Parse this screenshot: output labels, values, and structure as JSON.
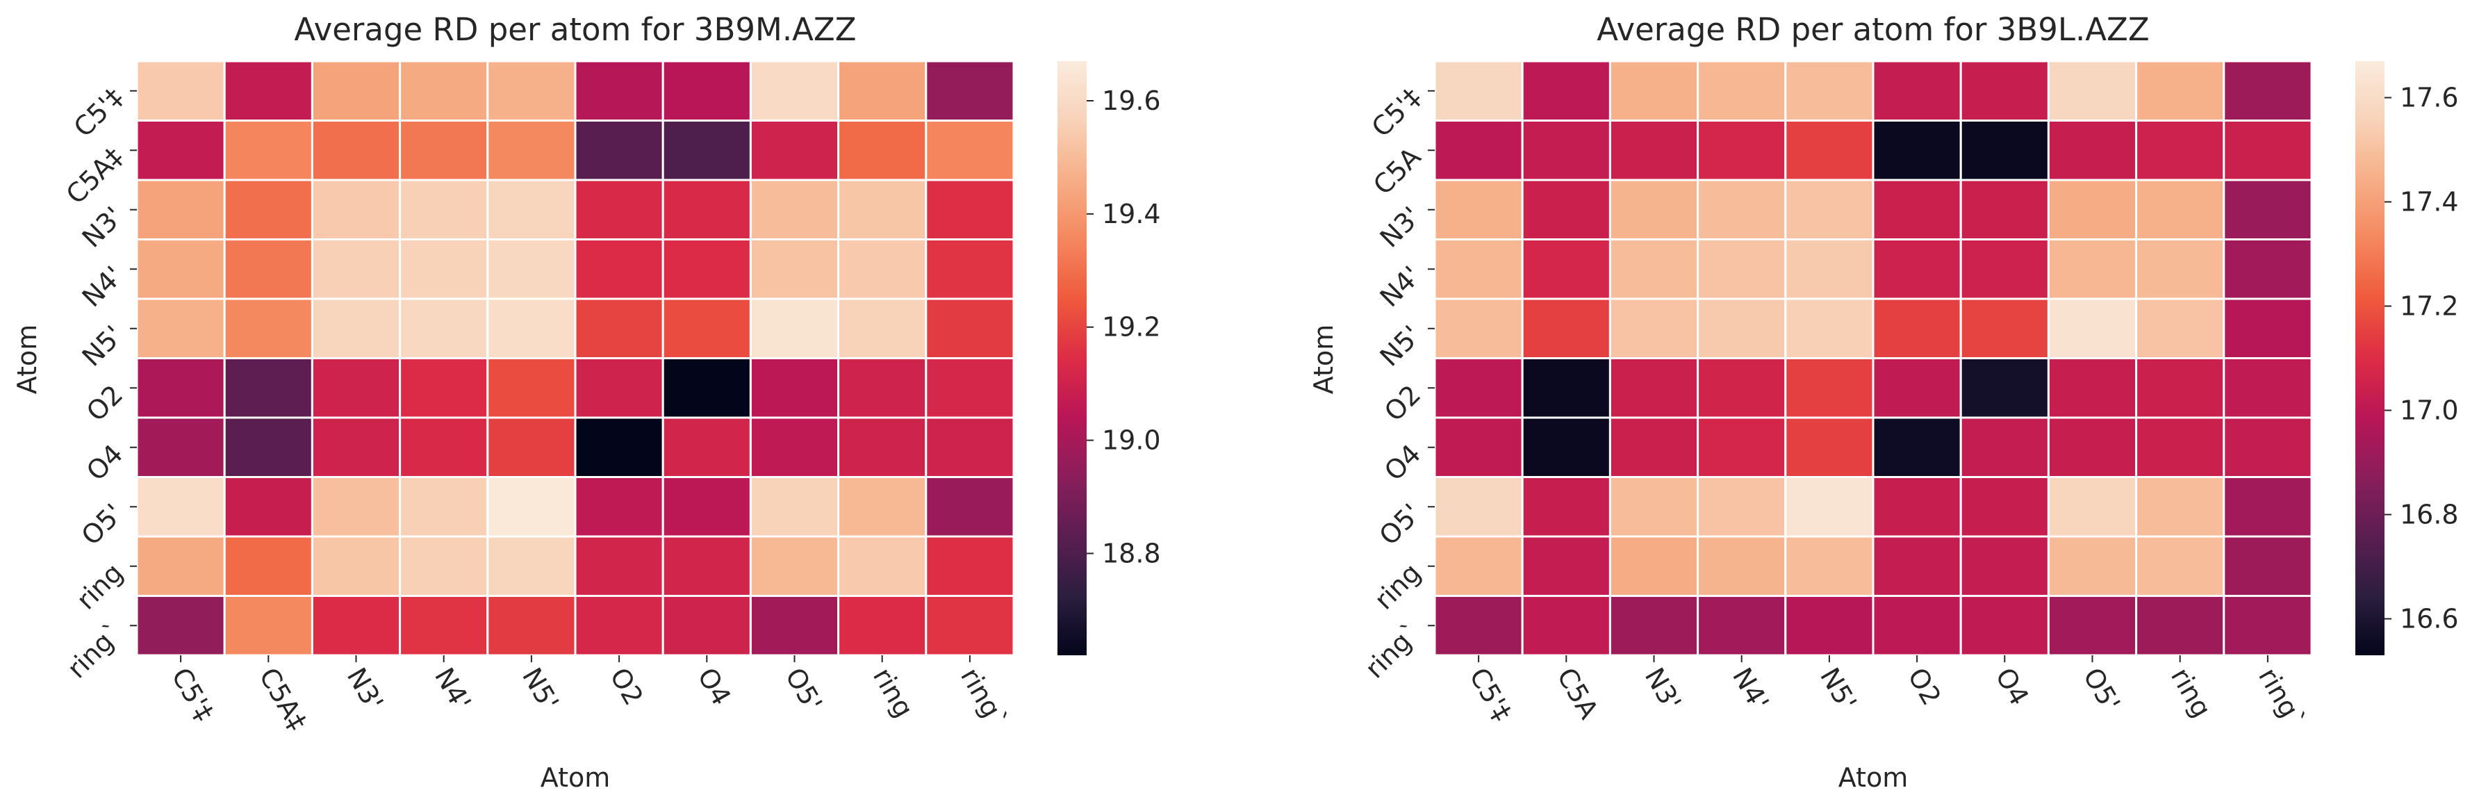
{
  "chart_data": [
    {
      "type": "heatmap",
      "title": "Average RD per atom for 3B9M.AZZ",
      "xlabel": "Atom",
      "ylabel": "Atom",
      "x_labels": [
        "C5'‡",
        "C5A‡",
        "N3'",
        "N4'",
        "N5'",
        "O2",
        "O4",
        "O5'",
        "ring",
        "ring`"
      ],
      "y_labels": [
        "C5'‡",
        "C5A‡",
        "N3'",
        "N4'",
        "N5'",
        "O2",
        "O4",
        "O5'",
        "ring",
        "ring`"
      ],
      "values": [
        [
          19.54,
          19.07,
          19.43,
          19.45,
          19.47,
          19.03,
          19.04,
          19.6,
          19.43,
          18.96
        ],
        [
          19.07,
          19.35,
          19.3,
          19.32,
          19.36,
          18.82,
          18.8,
          19.1,
          19.29,
          19.35
        ],
        [
          19.43,
          19.3,
          19.54,
          19.56,
          19.58,
          19.13,
          19.13,
          19.5,
          19.53,
          19.15
        ],
        [
          19.45,
          19.32,
          19.56,
          19.57,
          19.59,
          19.14,
          19.14,
          19.52,
          19.54,
          19.16
        ],
        [
          19.47,
          19.36,
          19.58,
          19.59,
          19.61,
          19.2,
          19.22,
          19.64,
          19.57,
          19.18
        ],
        [
          19.01,
          18.84,
          19.1,
          19.14,
          19.22,
          19.1,
          18.62,
          19.05,
          19.1,
          19.12
        ],
        [
          18.99,
          18.83,
          19.1,
          19.13,
          19.19,
          18.62,
          19.11,
          19.06,
          19.1,
          19.1
        ],
        [
          19.61,
          19.08,
          19.51,
          19.56,
          19.66,
          19.06,
          19.05,
          19.57,
          19.49,
          18.97
        ],
        [
          19.45,
          19.29,
          19.53,
          19.56,
          19.58,
          19.11,
          19.11,
          19.49,
          19.54,
          19.15
        ],
        [
          18.95,
          19.36,
          19.14,
          19.16,
          19.18,
          19.12,
          19.1,
          18.99,
          19.14,
          19.16
        ]
      ],
      "vmin": 18.62,
      "vmax": 19.67,
      "colorbar_ticks": [
        18.8,
        19.0,
        19.2,
        19.4,
        19.6
      ],
      "colorbar_labels": [
        "18.8",
        "19.0",
        "19.2",
        "19.4",
        "19.6"
      ]
    },
    {
      "type": "heatmap",
      "title": "Average RD per atom for 3B9L.AZZ",
      "xlabel": "Atom",
      "ylabel": "Atom",
      "x_labels": [
        "C5'‡",
        "C5A",
        "N3'",
        "N4'",
        "N5'",
        "O2",
        "O4",
        "O5'",
        "ring",
        "ring`"
      ],
      "y_labels": [
        "C5'‡",
        "C5A",
        "N3'",
        "N4'",
        "N5'",
        "O2",
        "O4",
        "O5'",
        "ring",
        "ring`"
      ],
      "values": [
        [
          17.58,
          17.0,
          17.45,
          17.47,
          17.49,
          17.02,
          17.03,
          17.58,
          17.45,
          16.92
        ],
        [
          17.0,
          17.02,
          17.04,
          17.07,
          17.15,
          16.55,
          16.55,
          17.03,
          17.05,
          17.04
        ],
        [
          17.45,
          17.04,
          17.46,
          17.49,
          17.51,
          17.04,
          17.04,
          17.44,
          17.45,
          16.91
        ],
        [
          17.47,
          17.07,
          17.49,
          17.51,
          17.53,
          17.05,
          17.05,
          17.47,
          17.48,
          16.93
        ],
        [
          17.49,
          17.15,
          17.51,
          17.53,
          17.55,
          17.15,
          17.16,
          17.63,
          17.51,
          16.98
        ],
        [
          17.0,
          16.55,
          17.04,
          17.06,
          17.15,
          17.01,
          16.58,
          17.03,
          17.04,
          17.01
        ],
        [
          17.01,
          16.55,
          17.04,
          17.07,
          17.15,
          16.56,
          17.02,
          17.03,
          17.04,
          17.02
        ],
        [
          17.58,
          17.03,
          17.49,
          17.51,
          17.64,
          17.03,
          17.03,
          17.57,
          17.49,
          16.93
        ],
        [
          17.47,
          17.02,
          17.44,
          17.46,
          17.49,
          17.02,
          17.02,
          17.48,
          17.49,
          16.92
        ],
        [
          16.92,
          17.01,
          16.92,
          16.93,
          16.98,
          17.0,
          17.01,
          16.93,
          16.92,
          16.93
        ]
      ],
      "vmin": 16.53,
      "vmax": 17.67,
      "colorbar_ticks": [
        16.6,
        16.8,
        17.0,
        17.2,
        17.4,
        17.6
      ],
      "colorbar_labels": [
        "16.6",
        "16.8",
        "17.0",
        "17.2",
        "17.4",
        "17.6"
      ]
    }
  ]
}
